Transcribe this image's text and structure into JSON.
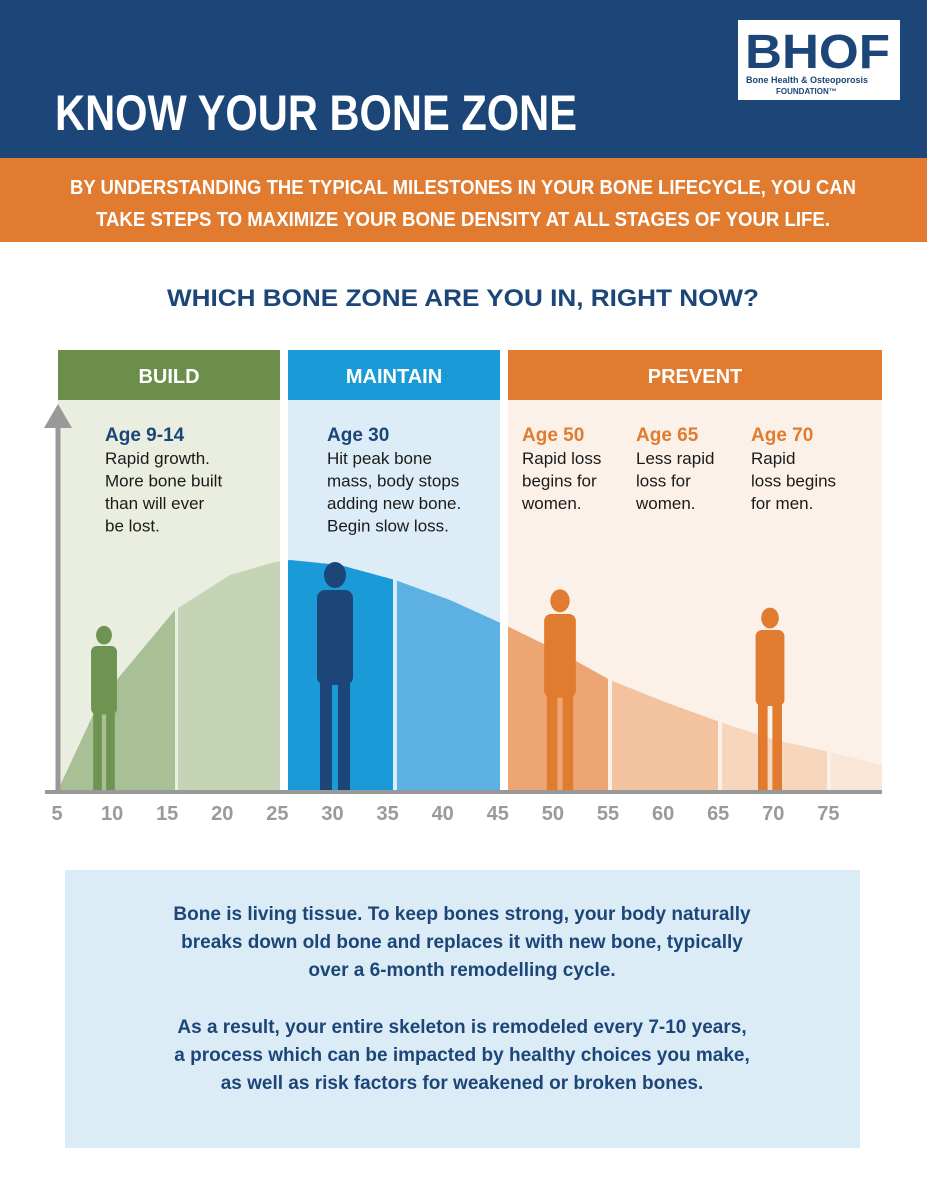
{
  "header": {
    "title": "KNOW YOUR BONE ZONE",
    "logo": "BHOF",
    "logo_line1": "Bone Health & Osteoporosis",
    "logo_line2": "FOUNDATION™"
  },
  "intro": [
    "BY UNDERSTANDING THE TYPICAL MILESTONES IN YOUR BONE LIFECYCLE, YOU CAN",
    "TAKE STEPS TO MAXIMIZE YOUR BONE DENSITY AT ALL STAGES OF YOUR LIFE."
  ],
  "question": "WHICH BONE ZONE ARE YOU IN, RIGHT NOW?",
  "zones": [
    "BUILD",
    "MAINTAIN",
    "PREVENT"
  ],
  "milestones": [
    {
      "age": "Age 9-14",
      "text": [
        "Rapid growth.",
        "More bone built",
        "than will ever",
        "be lost."
      ]
    },
    {
      "age": "Age 30",
      "text": [
        "Hit peak bone",
        "mass, body stops",
        "adding new bone.",
        "Begin slow loss."
      ]
    },
    {
      "age": "Age 50",
      "text": [
        "Rapid loss",
        "begins for",
        "women."
      ]
    },
    {
      "age": "Age 65",
      "text": [
        "Less rapid",
        "loss for",
        "women."
      ]
    },
    {
      "age": "Age 70",
      "text": [
        "Rapid",
        "loss begins",
        "for men."
      ]
    }
  ],
  "axis_labels": [
    "5",
    "10",
    "15",
    "20",
    "25",
    "30",
    "35",
    "40",
    "45",
    "50",
    "55",
    "60",
    "65",
    "70",
    "75"
  ],
  "info": {
    "p1": [
      "Bone is living tissue. To keep bones strong, your body naturally",
      "breaks down old bone and replaces it with new bone, typically",
      "over a 6-month remodelling cycle."
    ],
    "p2": [
      "As a result, your entire skeleton is remodeled every 7-10 years,",
      "a process which can be impacted by healthy choices you make,",
      "as well as risk factors for weakened or broken bones."
    ]
  }
}
